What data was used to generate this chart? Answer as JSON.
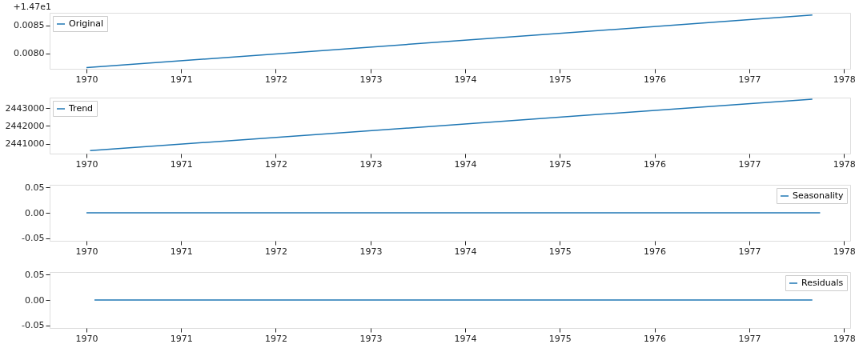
{
  "chart_data": [
    {
      "type": "line",
      "annotations": [
        "+1.47e1"
      ],
      "x": [
        "1970-01",
        "1977-09"
      ],
      "series": [
        {
          "name": "Original",
          "color": "#1f77b4",
          "values": [
            0.00775,
            0.00868
          ]
        }
      ],
      "xlim": [
        "1969-08-12",
        "1978-01-25"
      ],
      "xticks": [
        "1970",
        "1971",
        "1972",
        "1973",
        "1974",
        "1975",
        "1976",
        "1977",
        "1978"
      ],
      "ylim": [
        0.00773,
        0.00872
      ],
      "yticks": [
        {
          "value": 0.008,
          "label": "0.0080"
        },
        {
          "value": 0.0085,
          "label": "0.0085"
        }
      ],
      "legend": "top left",
      "grid": false
    },
    {
      "type": "line",
      "x": [
        "1970-01-15",
        "1977-09"
      ],
      "series": [
        {
          "name": "Trend",
          "color": "#1f77b4",
          "values": [
            2440600,
            2443520
          ]
        }
      ],
      "xlim": [
        "1969-08-12",
        "1978-01-25"
      ],
      "xticks": [
        "1970",
        "1971",
        "1972",
        "1973",
        "1974",
        "1975",
        "1976",
        "1977",
        "1978"
      ],
      "ylim": [
        2440435,
        2443609
      ],
      "yticks": [
        2441000,
        2442000,
        2443000
      ],
      "legend": "top left",
      "grid": false
    },
    {
      "type": "line",
      "x": [
        "1970-01",
        "1977-10"
      ],
      "series": [
        {
          "name": "Seasonality",
          "color": "#1f77b4",
          "values": [
            0,
            0
          ]
        }
      ],
      "xlim": [
        "1969-08-12",
        "1978-01-25"
      ],
      "xticks": [
        "1970",
        "1971",
        "1972",
        "1973",
        "1974",
        "1975",
        "1976",
        "1977",
        "1978"
      ],
      "ylim": [
        -0.055,
        0.055
      ],
      "yticks": [
        {
          "value": -0.05,
          "label": "-0.05"
        },
        {
          "value": 0,
          "label": "0.00"
        },
        {
          "value": 0.05,
          "label": "0.05"
        }
      ],
      "legend": "top right",
      "grid": false
    },
    {
      "type": "line",
      "x": [
        "1970-02",
        "1977-09"
      ],
      "series": [
        {
          "name": "Residuals",
          "color": "#1f77b4",
          "values": [
            0,
            0
          ]
        }
      ],
      "xlim": [
        "1969-08-12",
        "1978-01-25"
      ],
      "xticks": [
        "1970",
        "1971",
        "1972",
        "1973",
        "1974",
        "1975",
        "1976",
        "1977",
        "1978"
      ],
      "ylim": [
        -0.055,
        0.055
      ],
      "yticks": [
        {
          "value": -0.05,
          "label": "-0.05"
        },
        {
          "value": 0,
          "label": "0.00"
        },
        {
          "value": 0.05,
          "label": "0.05"
        }
      ],
      "legend": "top right",
      "grid": false
    }
  ]
}
